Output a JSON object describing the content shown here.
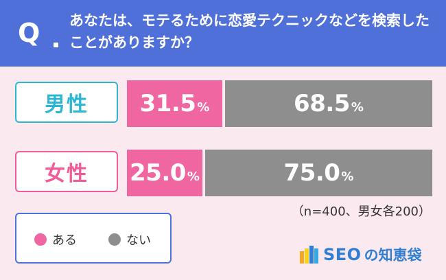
{
  "header": {
    "q_mark": "Q",
    "question": "あなたは、モテるために恋愛テクニックなどを検索したことがありますか？"
  },
  "chart_data": {
    "type": "bar",
    "stacked": true,
    "orientation": "horizontal",
    "categories": [
      "男性",
      "女性"
    ],
    "series": [
      {
        "name": "ある",
        "values": [
          31.5,
          25.0
        ],
        "color": "#f066a0"
      },
      {
        "name": "ない",
        "values": [
          68.5,
          75.0
        ],
        "color": "#8e8e8e"
      }
    ],
    "unit": "%",
    "value_labels": [
      [
        "31.5",
        "68.5"
      ],
      [
        "25.0",
        "75.0"
      ]
    ],
    "xlim": [
      0,
      100
    ],
    "legend_position": "bottom-left",
    "grid": false
  },
  "note": "（n=400、男女各200）",
  "legend": {
    "items": [
      {
        "label": "ある",
        "color": "#f066a0"
      },
      {
        "label": "ない",
        "color": "#8e8e8e"
      }
    ]
  },
  "brand": {
    "seo": "SEO",
    "rest": "の知恵袋",
    "logo_colors": [
      "#f5a623",
      "#f7d11e",
      "#2f7fd4",
      "#3aa7e0"
    ]
  },
  "colors": {
    "header_bg": "#4f6fd9",
    "page_bg": "#fbe9f0",
    "male_accent": "#2bb7d4",
    "female_accent": "#ef5c98"
  }
}
